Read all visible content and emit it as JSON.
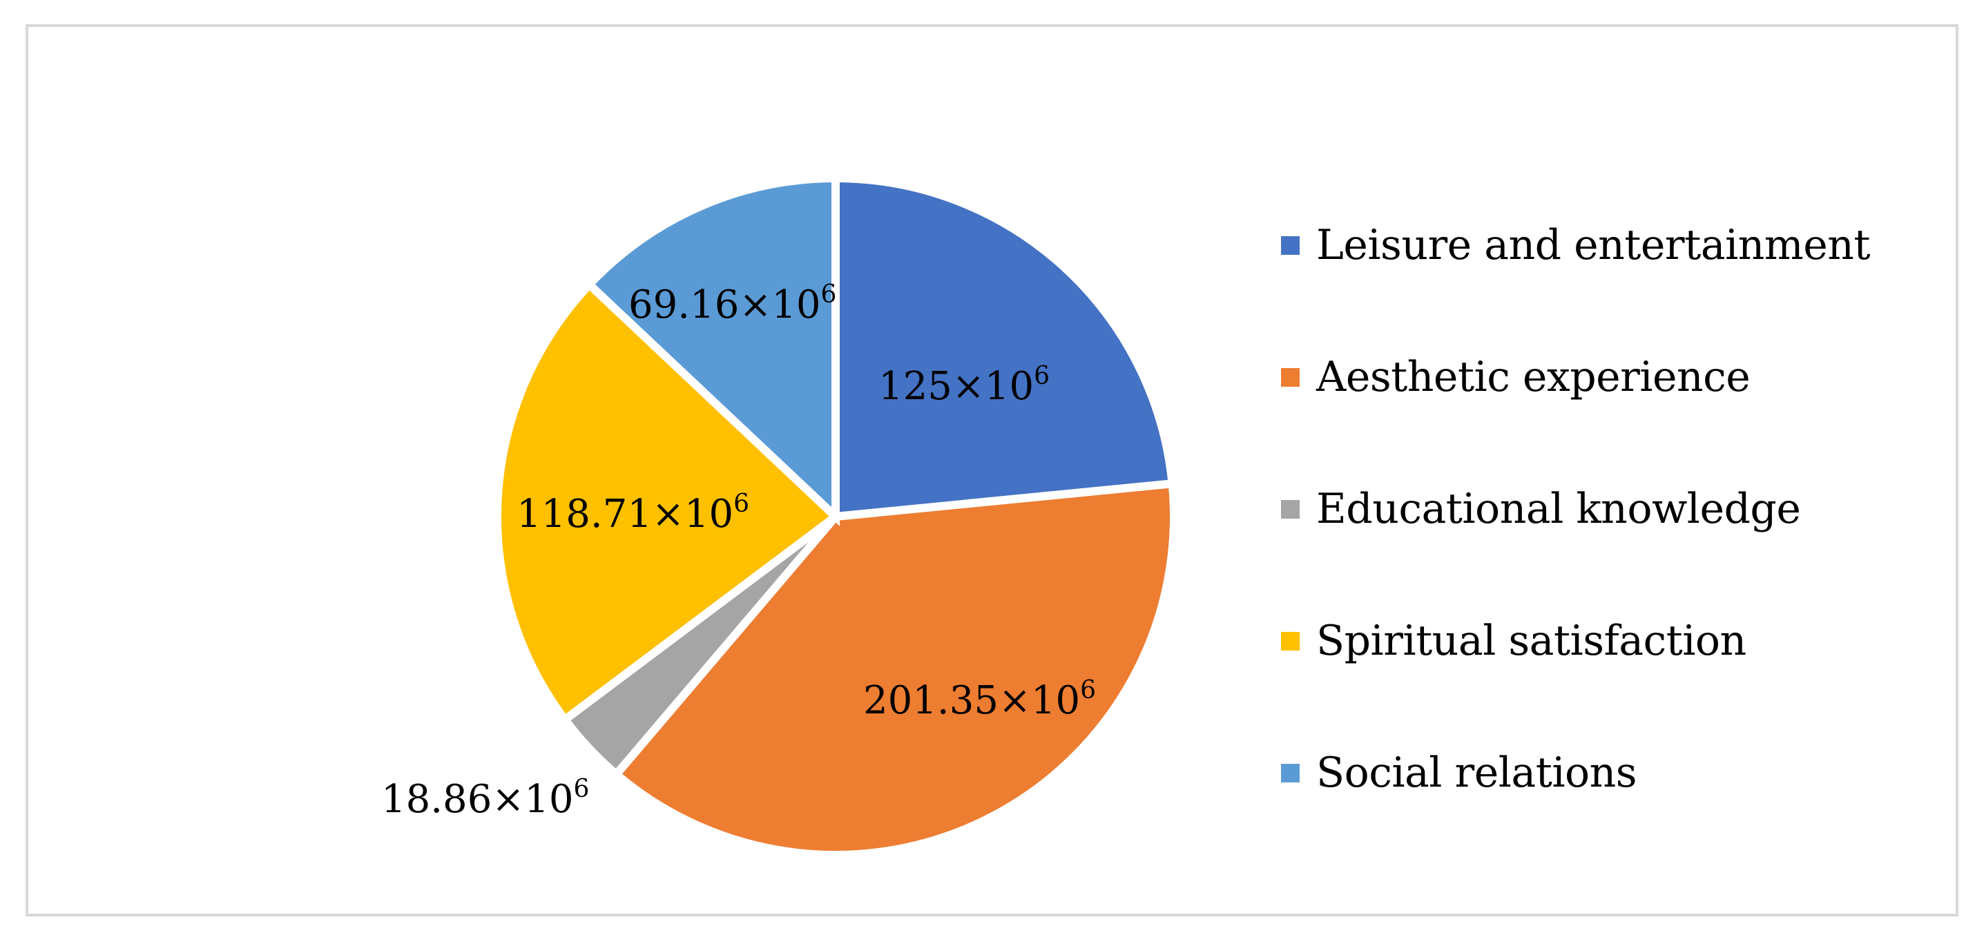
{
  "chart_data": {
    "type": "pie",
    "title": "",
    "unit_base": "×10",
    "unit_exponent": "6",
    "slices": [
      {
        "name": "Leisure and entertainment",
        "value": 125,
        "label_prefix": "125×10",
        "color": "#4472C4"
      },
      {
        "name": "Aesthetic experience",
        "value": 201.35,
        "label_prefix": "201.35×10",
        "color": "#ED7D31"
      },
      {
        "name": "Educational knowledge",
        "value": 18.86,
        "label_prefix": "18.86×10",
        "color": "#A5A5A5"
      },
      {
        "name": "Spiritual satisfaction",
        "value": 118.71,
        "label_prefix": "118.71×10",
        "color": "#FFC000"
      },
      {
        "name": "Social relations",
        "value": 69.16,
        "label_prefix": "69.16×10",
        "color": "#5B9BD5"
      }
    ],
    "legend_position": "right"
  }
}
